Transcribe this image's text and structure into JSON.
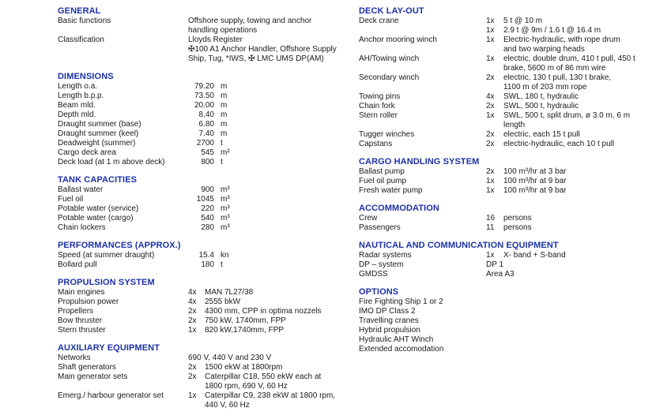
{
  "document": {
    "background": "#ffffff",
    "heading_color": "#1c31a5",
    "text_color": "#1a1a1a"
  },
  "columns": [
    {
      "name": "left",
      "sections": [
        {
          "title": "GENERAL",
          "rows": [
            {
              "label": "Basic functions",
              "lines": [
                {
                  "t": "Offshore supply, towing and anchor"
                },
                {
                  "t": "handling operations"
                }
              ]
            },
            {
              "label": "Classification",
              "lines": [
                {
                  "t": "Lloyds Register"
                },
                {
                  "t": "✠100 A1 Anchor Handler, Offshore Supply"
                },
                {
                  "t": "Ship, Tug, *IWS, ✠ LMC UMS DP(AM)"
                }
              ]
            }
          ]
        },
        {
          "title": "DIMENSIONS",
          "rows": [
            {
              "label": "Length o.a.",
              "value": "79.20",
              "unit": "m"
            },
            {
              "label": "Length b.p.p.",
              "value": "73.50",
              "unit": "m"
            },
            {
              "label": "Beam mld.",
              "value": "20.00",
              "unit": "m"
            },
            {
              "label": "Depth mld.",
              "value": "8.40",
              "unit": "m"
            },
            {
              "label": "Draught summer (base)",
              "value": "6.80",
              "unit": "m"
            },
            {
              "label": "Draught summer (keel)",
              "value": "7.40",
              "unit": "m"
            },
            {
              "label": "Deadweight (summer)",
              "value": "2700",
              "unit": "t"
            },
            {
              "label": "Cargo deck area",
              "value": "545",
              "unit": "m²"
            },
            {
              "label": "Deck load (at 1 m above deck)",
              "value": "800",
              "unit": "t"
            }
          ]
        },
        {
          "title": "TANK CAPACITIES",
          "rows": [
            {
              "label": "Ballast water",
              "value": "900",
              "unit": "m³"
            },
            {
              "label": "Fuel oil",
              "value": "1045",
              "unit": "m³"
            },
            {
              "label": "Potable water (service)",
              "value": "220",
              "unit": "m³"
            },
            {
              "label": "Potable water (cargo)",
              "value": "540",
              "unit": "m³"
            },
            {
              "label": "Chain lockers",
              "value": "280",
              "unit": "m³"
            }
          ]
        },
        {
          "title": "PERFORMANCES (APPROX.)",
          "rows": [
            {
              "label": "Speed (at summer draught)",
              "value": "15.4",
              "unit": "kn"
            },
            {
              "label": "Bollard pull",
              "value": "180",
              "unit": "t"
            }
          ]
        },
        {
          "title": "PROPULSION SYSTEM",
          "rows": [
            {
              "label": "Main engines",
              "lines": [
                {
                  "q": "4x",
                  "t": "MAN 7L27/38"
                }
              ]
            },
            {
              "label": "Propulsion power",
              "lines": [
                {
                  "q": "4x",
                  "t": "2555 bkW"
                }
              ]
            },
            {
              "label": "Propellers",
              "lines": [
                {
                  "q": "2x",
                  "t": "4300 mm, CPP in optima nozzels"
                }
              ]
            },
            {
              "label": "Bow thruster",
              "lines": [
                {
                  "q": "2x",
                  "t": "750 kW, 1740mm, FPP"
                }
              ]
            },
            {
              "label": "Stern thruster",
              "lines": [
                {
                  "q": "1x",
                  "t": "820 kW,1740mm, FPP"
                }
              ]
            }
          ]
        },
        {
          "title": "AUXILIARY EQUIPMENT",
          "rows": [
            {
              "label": "Networks",
              "lines": [
                {
                  "t": "690 V, 440 V and 230 V"
                }
              ]
            },
            {
              "label": "Shaft generators",
              "lines": [
                {
                  "q": "2x",
                  "t": "1500 ekW at 1800rpm"
                }
              ]
            },
            {
              "label": "Main generator sets",
              "lines": [
                {
                  "q": "2x",
                  "t": "Caterpillar C18, 550 ekW each at"
                },
                {
                  "q": "",
                  "t": "1800 rpm, 690 V, 60 Hz"
                }
              ]
            },
            {
              "label": "Emerg./ harbour generator set",
              "lines": [
                {
                  "q": "1x",
                  "t": "Caterpillar C9, 238 ekW at 1800 rpm,"
                },
                {
                  "q": "",
                  "t": "440 V, 60 Hz"
                }
              ]
            }
          ]
        }
      ]
    },
    {
      "name": "right",
      "sections": [
        {
          "title": "DECK LAY-OUT",
          "rows": [
            {
              "label": "Deck crane",
              "lines": [
                {
                  "q": "1x",
                  "t": "5 t @ 10 m"
                },
                {
                  "q": "1x",
                  "t": "2.9 t @ 9m / 1.6 t @ 16.4 m"
                }
              ]
            },
            {
              "label": "Anchor mooring winch",
              "lines": [
                {
                  "q": "1x",
                  "t": "Electric-hydraulic, with rope drum"
                },
                {
                  "q": "",
                  "t": "and two warping heads"
                }
              ]
            },
            {
              "label": "AH/Towing winch",
              "lines": [
                {
                  "q": "1x",
                  "t": "electric, double drum, 410 t pull, 450 t"
                },
                {
                  "q": "",
                  "t": "brake, 5600 m of 86 mm wire"
                }
              ]
            },
            {
              "label": "Secondary winch",
              "lines": [
                {
                  "q": "2x",
                  "t": "electric, 130 t pull, 130 t brake,"
                },
                {
                  "q": "",
                  "t": "1100 m of 203 mm rope"
                }
              ]
            },
            {
              "label": "Towing pins",
              "lines": [
                {
                  "q": "4x",
                  "t": "SWL, 180 t, hydraulic"
                }
              ]
            },
            {
              "label": "Chain fork",
              "lines": [
                {
                  "q": "2x",
                  "t": "SWL, 500 t, hydraulic"
                }
              ]
            },
            {
              "label": "Stern roller",
              "lines": [
                {
                  "q": "1x",
                  "t": "SWL, 500 t, split drum, ø 3.0 m, 6 m"
                },
                {
                  "q": "",
                  "t": "length"
                }
              ]
            },
            {
              "label": "Tugger winches",
              "lines": [
                {
                  "q": "2x",
                  "t": "electric, each 15 t pull"
                }
              ]
            },
            {
              "label": "Capstans",
              "lines": [
                {
                  "q": "2x",
                  "t": "electric-hydraulic, each 10 t pull"
                }
              ]
            }
          ]
        },
        {
          "title": "CARGO HANDLING SYSTEM",
          "rows": [
            {
              "label": "Ballast pump",
              "lines": [
                {
                  "q": "2x",
                  "t": "100 m³/hr at 3 bar"
                }
              ]
            },
            {
              "label": "Fuel oil pump",
              "lines": [
                {
                  "q": "1x",
                  "t": "100 m³/hr at 9 bar"
                }
              ]
            },
            {
              "label": "Fresh water pump",
              "lines": [
                {
                  "q": "1x",
                  "t": "100 m³/hr at 9 bar"
                }
              ]
            }
          ]
        },
        {
          "title": "ACCOMMODATION",
          "rows": [
            {
              "label": "Crew",
              "lines": [
                {
                  "q": "16",
                  "t": "persons"
                }
              ]
            },
            {
              "label": "Passengers",
              "lines": [
                {
                  "q": "11",
                  "t": "persons"
                }
              ]
            }
          ]
        },
        {
          "title": "NAUTICAL AND COMMUNICATION EQUIPMENT",
          "rows": [
            {
              "label": "Radar systems",
              "lines": [
                {
                  "q": "1x",
                  "t": "X- band + S-band"
                }
              ]
            },
            {
              "label": "DP – system",
              "lines": [
                {
                  "t": "DP 1"
                }
              ]
            },
            {
              "label": "GMDSS",
              "lines": [
                {
                  "t": "Area A3"
                }
              ]
            }
          ]
        },
        {
          "title": "OPTIONS",
          "rows": [
            {
              "label": "Fire Fighting Ship 1 or 2"
            },
            {
              "label": "IMO DP Class 2"
            },
            {
              "label": "Travelling cranes"
            },
            {
              "label": "Hybrid propulsion"
            },
            {
              "label": "Hydraulic AHT Winch"
            },
            {
              "label": "Extended accomodation"
            }
          ]
        }
      ]
    }
  ]
}
